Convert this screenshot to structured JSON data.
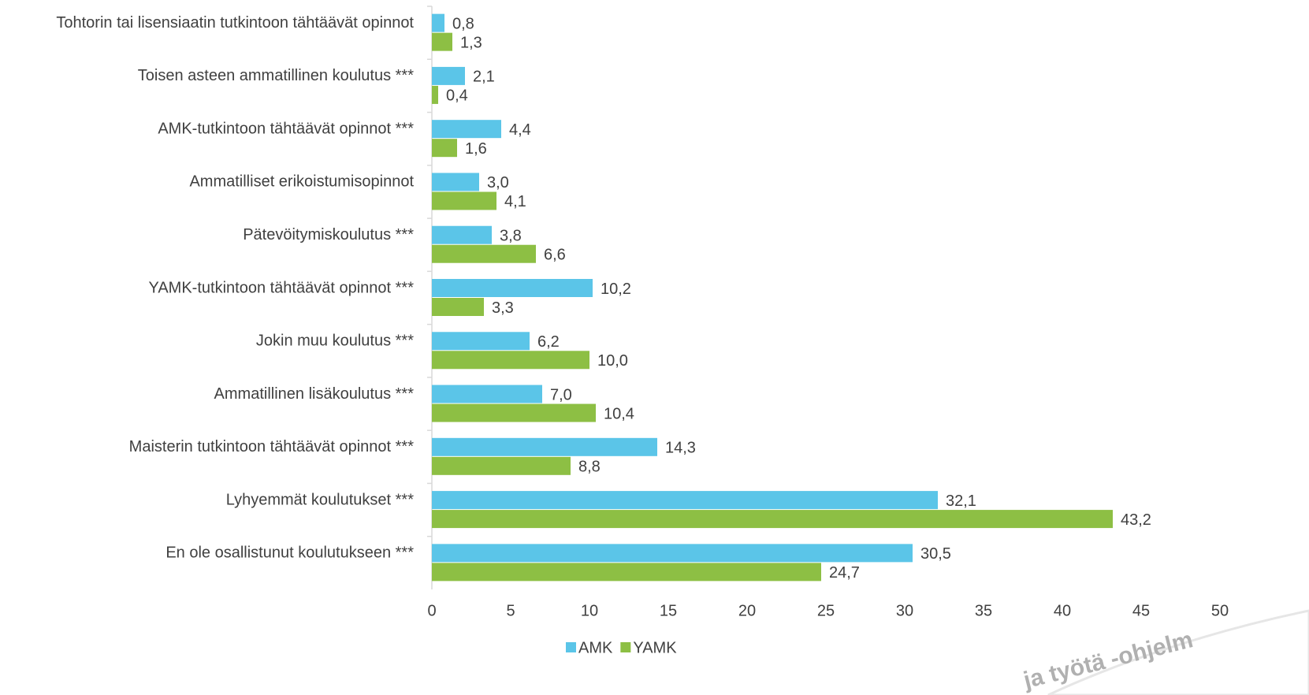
{
  "chart_data": {
    "type": "bar",
    "orientation": "horizontal",
    "categories": [
      "Tohtorin tai lisensiaatin tutkintoon tähtäävät opinnot",
      "Toisen asteen ammatillinen koulutus ***",
      "AMK-tutkintoon tähtäävät opinnot ***",
      "Ammatilliset erikoistumisopinnot",
      "Pätevöitymiskoulutus ***",
      "YAMK-tutkintoon tähtäävät opinnot ***",
      "Jokin muu koulutus ***",
      "Ammatillinen lisäkoulutus ***",
      "Maisterin tutkintoon tähtäävät opinnot ***",
      "Lyhyemmät koulutukset ***",
      "En ole osallistunut koulutukseen ***"
    ],
    "series": [
      {
        "name": "AMK",
        "color": "#5bc5e8",
        "values": [
          0.8,
          2.1,
          4.4,
          3.0,
          3.8,
          10.2,
          6.2,
          7.0,
          14.3,
          32.1,
          30.5
        ],
        "value_labels": [
          "0,8",
          "2,1",
          "4,4",
          "3,0",
          "3,8",
          "10,2",
          "6,2",
          "7,0",
          "14,3",
          "32,1",
          "30,5"
        ]
      },
      {
        "name": "YAMK",
        "color": "#8dbf44",
        "values": [
          1.3,
          0.4,
          1.6,
          4.1,
          6.6,
          3.3,
          10.0,
          10.4,
          8.8,
          43.2,
          24.7
        ],
        "value_labels": [
          "1,3",
          "0,4",
          "1,6",
          "4,1",
          "6,6",
          "3,3",
          "10,0",
          "10,4",
          "8,8",
          "43,2",
          "24,7"
        ]
      }
    ],
    "xlim": [
      0,
      50
    ],
    "xticks": [
      0,
      5,
      10,
      15,
      20,
      25,
      30,
      35,
      40,
      45,
      50
    ],
    "legend": "bottom",
    "grid": false,
    "watermark": "ja työtä -ohjelm"
  }
}
